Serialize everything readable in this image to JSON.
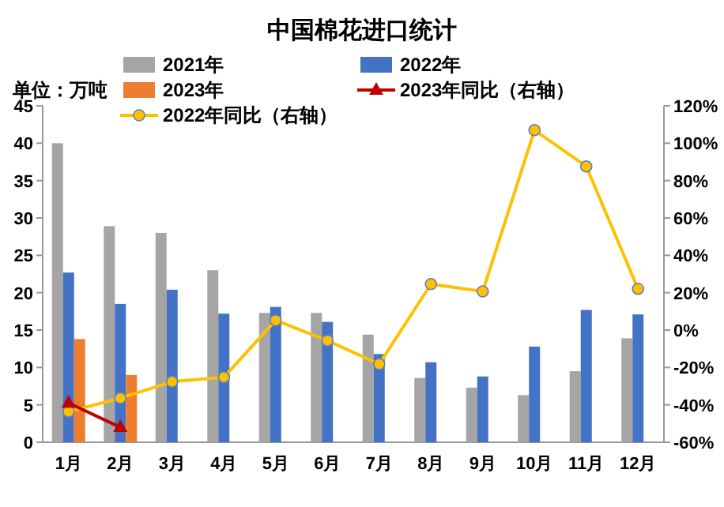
{
  "chart_data": {
    "type": "bar",
    "title": "中国棉花进口统计",
    "annotations": [
      "单位：万吨"
    ],
    "categories": [
      "1月",
      "2月",
      "3月",
      "4月",
      "5月",
      "6月",
      "7月",
      "8月",
      "9月",
      "10月",
      "11月",
      "12月"
    ],
    "series": [
      {
        "name": "2021年",
        "color": "#a5a5a5",
        "values": [
          40,
          28.9,
          28,
          23,
          17.3,
          17.3,
          14.4,
          8.6,
          7.3,
          6.3,
          9.5,
          13.9
        ]
      },
      {
        "name": "2022年",
        "color": "#4472c4",
        "values": [
          22.7,
          18.5,
          20.4,
          17.2,
          18.1,
          16.1,
          11.8,
          10.7,
          8.8,
          12.8,
          17.7,
          17.1
        ]
      },
      {
        "name": "2023年",
        "color": "#ed7d31",
        "values": [
          13.8,
          9.0,
          null,
          null,
          null,
          null,
          null,
          null,
          null,
          null,
          null,
          null
        ]
      },
      {
        "name": "2023年同比（右轴）",
        "type": "line",
        "axis": "y2",
        "marker": "triangle",
        "color": "#c00000",
        "values": [
          -39,
          -52,
          null,
          null,
          null,
          null,
          null,
          null,
          null,
          null,
          null,
          null
        ]
      },
      {
        "name": "2022年同比（右轴）",
        "type": "line",
        "axis": "y2",
        "marker": "circle",
        "color": "#ffc000",
        "values": [
          -43.6,
          -36.4,
          -27.6,
          -25.2,
          5.2,
          -5.6,
          -18.2,
          24.6,
          20.7,
          107,
          87.6,
          22.1
        ]
      }
    ],
    "ylim": [
      0,
      45
    ],
    "yticks": [
      0,
      5,
      10,
      15,
      20,
      25,
      30,
      35,
      40,
      45
    ],
    "y2lim": [
      -60,
      120
    ],
    "y2ticks": [
      {
        "value": -60,
        "label": "-60%"
      },
      {
        "value": -40,
        "label": "-40%"
      },
      {
        "value": -20,
        "label": "-20%"
      },
      {
        "value": 0,
        "label": "0%"
      },
      {
        "value": 20,
        "label": "20%"
      },
      {
        "value": 40,
        "label": "40%"
      },
      {
        "value": 60,
        "label": "60%"
      },
      {
        "value": 80,
        "label": "80%"
      },
      {
        "value": 100,
        "label": "100%"
      },
      {
        "value": 120,
        "label": "120%"
      }
    ],
    "grid": false,
    "legend": "top"
  }
}
